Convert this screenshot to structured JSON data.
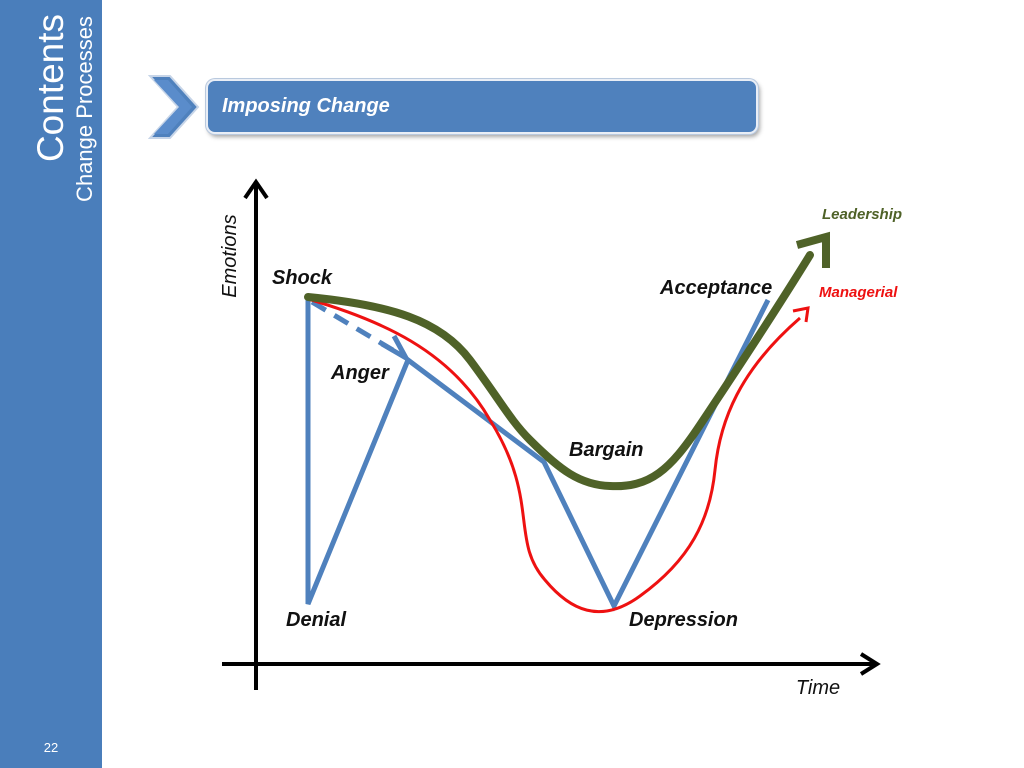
{
  "sidebar": {
    "title": "Contents",
    "subtitle": "Change Processes",
    "page_number": "22"
  },
  "header": {
    "title": "Imposing Change"
  },
  "diagram": {
    "axes": {
      "y_label": "Emotions",
      "x_label": "Time"
    },
    "stages": {
      "shock": "Shock",
      "anger": "Anger",
      "denial": "Denial",
      "bargain": "Bargain",
      "depression": "Depression",
      "acceptance": "Acceptance"
    },
    "curves": {
      "leadership": {
        "label": "Leadership",
        "color": "#4f6228"
      },
      "managerial": {
        "label": "Managerial",
        "color": "#ee1111"
      },
      "stages_line": {
        "color": "#4f81bd"
      }
    }
  }
}
